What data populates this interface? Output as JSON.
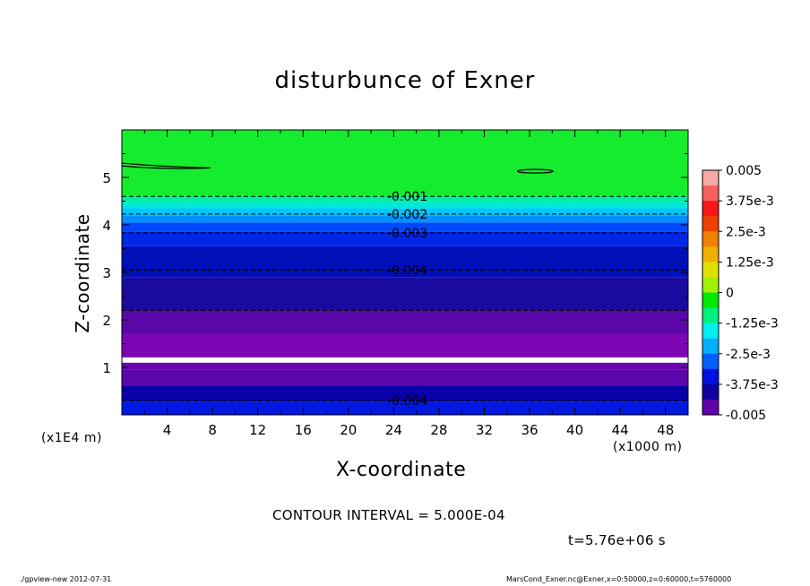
{
  "chart_data": {
    "type": "heatmap",
    "title": "disturbunce of Exner",
    "xlabel": "X-coordinate",
    "ylabel": "Z-coordinate",
    "x_unit_note": "(x1000 m)",
    "y_unit_note": "(x1E4 m)",
    "xlim": [
      0,
      50
    ],
    "ylim": [
      0,
      6
    ],
    "x_ticks": [
      "4",
      "8",
      "12",
      "16",
      "20",
      "24",
      "28",
      "32",
      "36",
      "40",
      "44",
      "48"
    ],
    "y_ticks": [
      "1",
      "2",
      "3",
      "4",
      "5"
    ],
    "bands": [
      {
        "z0": 0.0,
        "z1": 0.28,
        "color": "#0018e0"
      },
      {
        "z0": 0.28,
        "z1": 0.62,
        "color": "#0a00aa"
      },
      {
        "z0": 0.62,
        "z1": 0.95,
        "color": "#5a06a8"
      },
      {
        "z0": 0.95,
        "z1": 1.1,
        "color": "#6b04b0"
      },
      {
        "z0": 1.1,
        "z1": 1.21,
        "color": "#ffffff"
      },
      {
        "z0": 1.21,
        "z1": 1.7,
        "color": "#7c05b4"
      },
      {
        "z0": 1.7,
        "z1": 2.2,
        "color": "#5a06a8"
      },
      {
        "z0": 2.2,
        "z1": 2.9,
        "color": "#1a0aa0"
      },
      {
        "z0": 2.9,
        "z1": 3.55,
        "color": "#0010b8"
      },
      {
        "z0": 3.55,
        "z1": 3.85,
        "color": "#0026e6"
      },
      {
        "z0": 3.85,
        "z1": 4.05,
        "color": "#0048ff"
      },
      {
        "z0": 4.05,
        "z1": 4.2,
        "color": "#0090ff"
      },
      {
        "z0": 4.2,
        "z1": 4.35,
        "color": "#00c8ff"
      },
      {
        "z0": 4.35,
        "z1": 4.48,
        "color": "#00e8d8"
      },
      {
        "z0": 4.48,
        "z1": 4.62,
        "color": "#00f0a0"
      },
      {
        "z0": 4.62,
        "z1": 6.0,
        "color": "#16ec2e"
      }
    ],
    "contours": [
      {
        "z": 4.6,
        "label": "-0.001"
      },
      {
        "z": 4.23,
        "label": "-0.002"
      },
      {
        "z": 3.83,
        "label": "-0.003"
      },
      {
        "z": 3.05,
        "label": "-0.004"
      },
      {
        "z": 2.2,
        "label": ""
      },
      {
        "z": 0.3,
        "label": "-0.004"
      }
    ],
    "colorbar": {
      "colors": [
        "#f8a8a8",
        "#f86060",
        "#f81818",
        "#f04000",
        "#f08000",
        "#f0b000",
        "#e0e000",
        "#a0f000",
        "#00e800",
        "#00f080",
        "#00f0f0",
        "#00b0ff",
        "#0060ff",
        "#0010e0",
        "#1000a0",
        "#6000a8"
      ],
      "labels": [
        "0.005",
        "3.75e-3",
        "2.5e-3",
        "1.25e-3",
        "0",
        "-1.25e-3",
        "-2.5e-3",
        "-3.75e-3",
        "-0.005"
      ]
    }
  },
  "annotations": {
    "contour_interval": "CONTOUR INTERVAL = 5.000E-04",
    "time": "t=5.76e+06 s",
    "footer_left": "./gpview-new   2012-07-31",
    "footer_right": "MarsCond_Exner.nc@Exner,x=0:50000,z=0:60000,t=5760000"
  }
}
